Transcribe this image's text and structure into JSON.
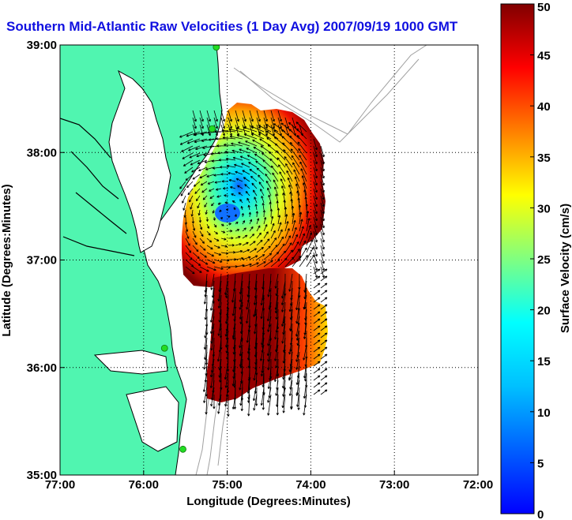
{
  "chart_data": {
    "type": "heatmap",
    "title": "Southern Mid-Atlantic Raw Velocities (1 Day Avg) 2007/09/19 1000 GMT",
    "xlabel": "Longitude (Degrees:Minutes)",
    "ylabel": "Latitude (Degrees:Minutes)",
    "x_ticks": [
      "77:00",
      "76:00",
      "75:00",
      "74:00",
      "73:00",
      "72:00"
    ],
    "y_ticks": [
      "39:00",
      "38:00",
      "37:00",
      "36:00",
      "35:00"
    ],
    "xlim": [
      -77,
      -72
    ],
    "ylim": [
      35,
      39
    ],
    "grid": "dotted",
    "colorbar": {
      "label": "Surface Velocity (cm/s)",
      "range": [
        0,
        50
      ],
      "ticks": [
        "0",
        "5",
        "10",
        "15",
        "20",
        "25",
        "30",
        "35",
        "40",
        "45",
        "50"
      ],
      "colormap": "jet"
    },
    "eddy_center": {
      "lon": -75.0,
      "lat": 37.42,
      "speed": 8
    },
    "stations": [
      {
        "lon": -75.13,
        "lat": 38.98
      },
      {
        "lon": -75.18,
        "lat": 38.22
      },
      {
        "lon": -75.75,
        "lat": 36.18
      },
      {
        "lon": -75.53,
        "lat": 35.24
      }
    ]
  },
  "colors": {
    "land": "#50f5b0",
    "title": "#1010e0",
    "coast": "#000000",
    "bathymetry": "#a0a0a0",
    "station": "#22dd22"
  }
}
